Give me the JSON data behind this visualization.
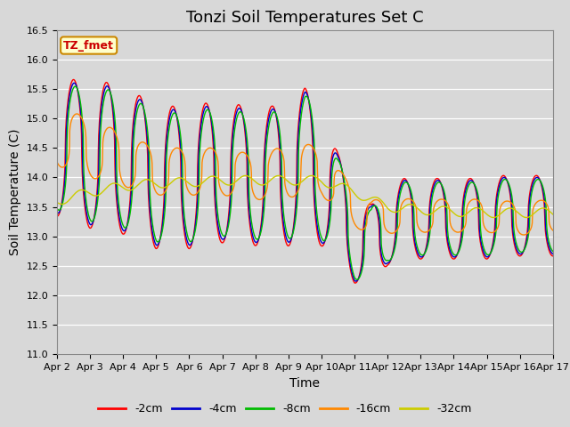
{
  "title": "Tonzi Soil Temperatures Set C",
  "xlabel": "Time",
  "ylabel": "Soil Temperature (C)",
  "ylim": [
    11.0,
    16.5
  ],
  "yticks": [
    11.0,
    11.5,
    12.0,
    12.5,
    13.0,
    13.5,
    14.0,
    14.5,
    15.0,
    15.5,
    16.0,
    16.5
  ],
  "x_labels": [
    "Apr 2",
    "Apr 3",
    "Apr 4",
    "Apr 5",
    "Apr 6",
    "Apr 7",
    "Apr 8",
    "Apr 9",
    "Apr 10",
    "Apr 11",
    "Apr 12",
    "Apr 13",
    "Apr 14",
    "Apr 15",
    "Apr 16",
    "Apr 17"
  ],
  "colors": {
    "-2cm": "#ff0000",
    "-4cm": "#0000cc",
    "-8cm": "#00bb00",
    "-16cm": "#ff8800",
    "-32cm": "#cccc00"
  },
  "legend_label": "TZ_fmet",
  "fig_bg": "#d8d8d8",
  "plot_bg": "#d8d8d8",
  "title_fontsize": 13,
  "axis_label_fontsize": 10,
  "tick_fontsize": 8
}
